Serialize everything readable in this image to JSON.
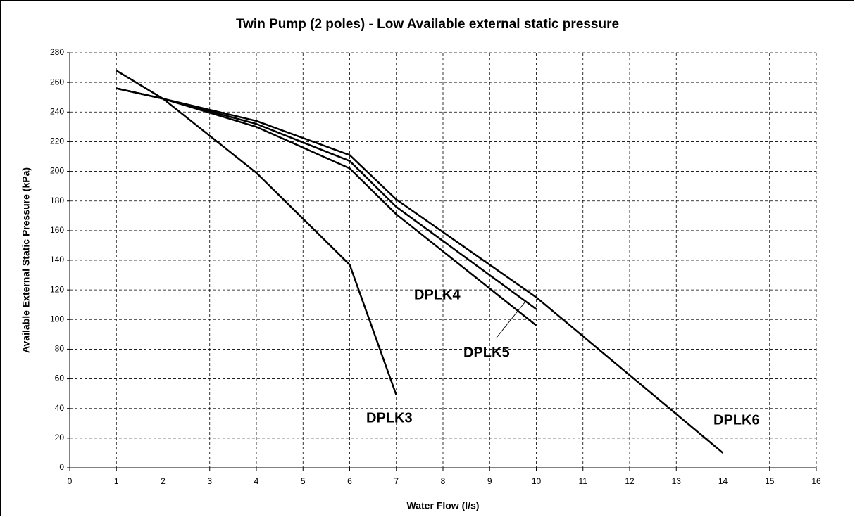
{
  "chart_data": {
    "type": "line",
    "title": "Twin Pump (2 poles) - Low Available external static pressure",
    "x_label": "Water Flow (l/s)",
    "y_label": "Available External Static Pressure (kPa)",
    "xlim": [
      0,
      16
    ],
    "xticks": [
      0,
      1,
      2,
      3,
      4,
      5,
      6,
      7,
      8,
      9,
      10,
      11,
      12,
      13,
      14,
      15,
      16
    ],
    "ylim": [
      0,
      280
    ],
    "yticks": [
      0,
      20,
      40,
      60,
      80,
      100,
      120,
      140,
      160,
      180,
      200,
      220,
      240,
      260,
      280
    ],
    "grid": true,
    "series": [
      {
        "name": "DPLK3",
        "color": "#000000",
        "x": [
          1,
          2,
          4,
          6,
          7
        ],
        "values": [
          268,
          249,
          199,
          137,
          49
        ]
      },
      {
        "name": "DPLK4",
        "color": "#000000",
        "x": [
          1,
          2,
          4,
          6,
          7,
          10
        ],
        "values": [
          256,
          249,
          230,
          202,
          171,
          96
        ]
      },
      {
        "name": "DPLK5",
        "color": "#000000",
        "x": [
          1,
          2,
          4,
          6,
          7,
          10
        ],
        "values": [
          256,
          249,
          232,
          207,
          176,
          107
        ]
      },
      {
        "name": "DPLK6",
        "color": "#000000",
        "x": [
          1,
          2,
          4,
          6,
          7,
          10,
          14
        ],
        "values": [
          256,
          249,
          234,
          211,
          181,
          115,
          10
        ]
      }
    ]
  }
}
